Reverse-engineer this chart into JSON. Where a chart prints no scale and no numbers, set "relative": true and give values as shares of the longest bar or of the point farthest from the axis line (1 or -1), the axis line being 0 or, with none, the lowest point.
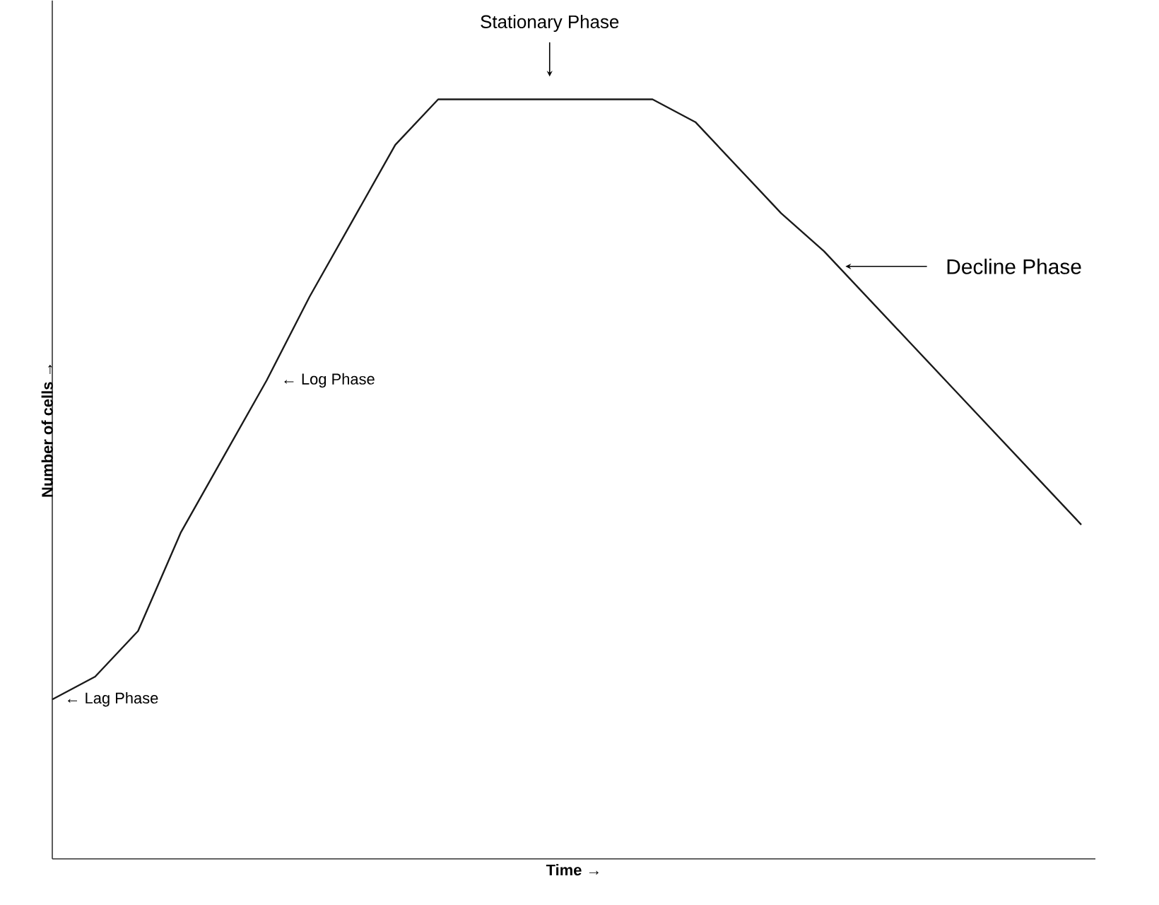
{
  "chart_data": {
    "type": "line",
    "relative": true,
    "xlabel": "Time →",
    "ylabel": "Number of cells →",
    "categories": [
      null,
      null,
      null,
      null,
      null,
      null,
      null,
      null,
      null,
      null,
      null,
      null,
      null,
      null,
      null,
      null,
      null,
      null,
      null,
      null,
      null,
      null,
      null,
      null,
      null
    ],
    "series": [
      {
        "color": "#1a1a1a",
        "values": [
          0.21,
          0.24,
          0.3,
          0.43,
          0.53,
          0.63,
          0.74,
          0.84,
          0.94,
          1.0,
          1.0,
          1.0,
          1.0,
          1.0,
          1.0,
          0.97,
          0.91,
          0.85,
          0.8,
          0.74,
          0.68,
          0.62,
          0.56,
          0.5,
          0.44
        ]
      }
    ],
    "annotations": [
      "Stationary Phase",
      "Decline Phase",
      "← Log Phase",
      "← Lag Phase"
    ]
  }
}
